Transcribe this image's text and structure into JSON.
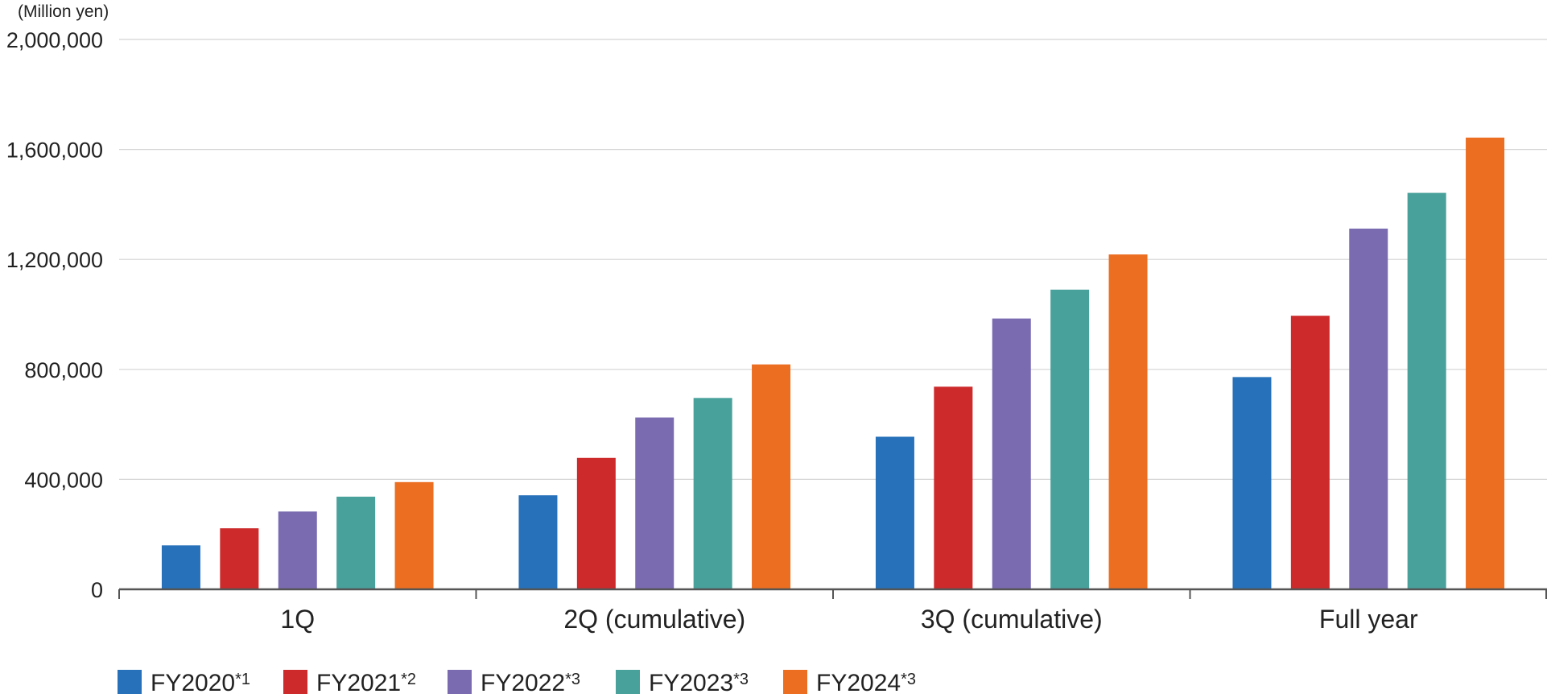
{
  "chart_data": {
    "type": "bar",
    "ylabel": "(Million yen)",
    "ylim": [
      0,
      2000000
    ],
    "yticks": [
      "0",
      "400,000",
      "800,000",
      "1,200,000",
      "1,600,000",
      "2,000,000"
    ],
    "ytick_values": [
      0,
      400000,
      800000,
      1200000,
      1600000,
      2000000
    ],
    "grid": true,
    "legend_position": "bottom-left",
    "categories": [
      "1Q",
      "2Q (cumulative)",
      "3Q (cumulative)",
      "Full year"
    ],
    "series": [
      {
        "name": "FY2020",
        "note": "*1",
        "color": "#2771ba",
        "values": [
          160000,
          342000,
          555000,
          772000
        ]
      },
      {
        "name": "FY2021",
        "note": "*2",
        "color": "#cd2a2b",
        "values": [
          222000,
          478000,
          737000,
          995000
        ]
      },
      {
        "name": "FY2022",
        "note": "*3",
        "color": "#7a6bb1",
        "values": [
          283000,
          625000,
          985000,
          1312000
        ]
      },
      {
        "name": "FY2023",
        "note": "*3",
        "color": "#48a19b",
        "values": [
          337000,
          696000,
          1090000,
          1442000
        ]
      },
      {
        "name": "FY2024",
        "note": "*3",
        "color": "#ec6e21",
        "values": [
          390000,
          818000,
          1218000,
          1643000
        ]
      }
    ]
  }
}
